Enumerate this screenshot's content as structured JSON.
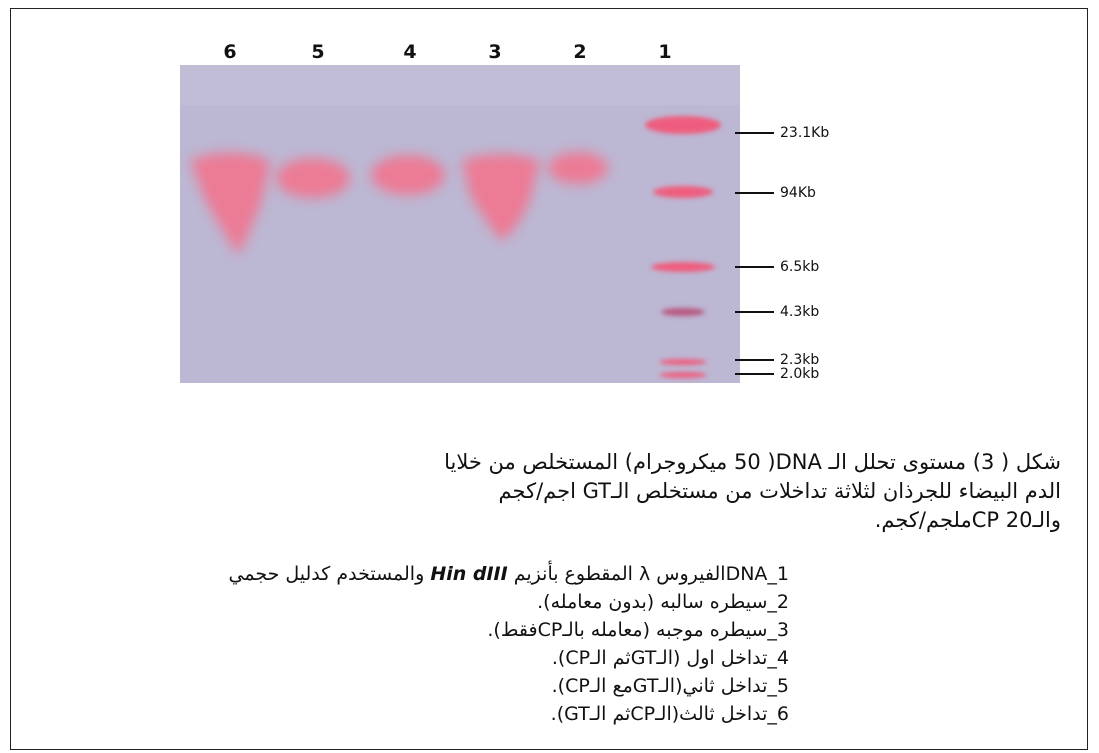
{
  "figure": {
    "lanes": [
      "6",
      "5",
      "4",
      "3",
      "2",
      "1"
    ],
    "markers": [
      "23.1Kb",
      "94Kb",
      "6.5kb",
      "4.3kb",
      "2.3kb",
      "2.0kb"
    ]
  },
  "caption": {
    "lines": [
      "شكل ( 3) مستوى تحلل الـ DNA( 50 ميكروجرام) المستخلص من خلايا",
      "الدم البيضاء للجرذان لثلاثة تداخلات من مستخلص الـGT اجم/كجم",
      "والـCP  20ملجم/كجم."
    ],
    "items": [
      {
        "before": "1_DNAالفيروس λ المقطوع بأنزيم",
        "enzyme": "Hin dIII",
        "after": "والمستخدم كدليل حجمي"
      },
      "2_سيطره سالبه (بدون معامله).",
      "3_سيطره موجبه (معامله بالـCPفقط).",
      "4_تداخل اول (الـGTثم الـCP).",
      "5_تداخل ثاني(الـGTمع الـCP).",
      "6_تداخل ثالث(الـCPثم الـGT)."
    ]
  }
}
